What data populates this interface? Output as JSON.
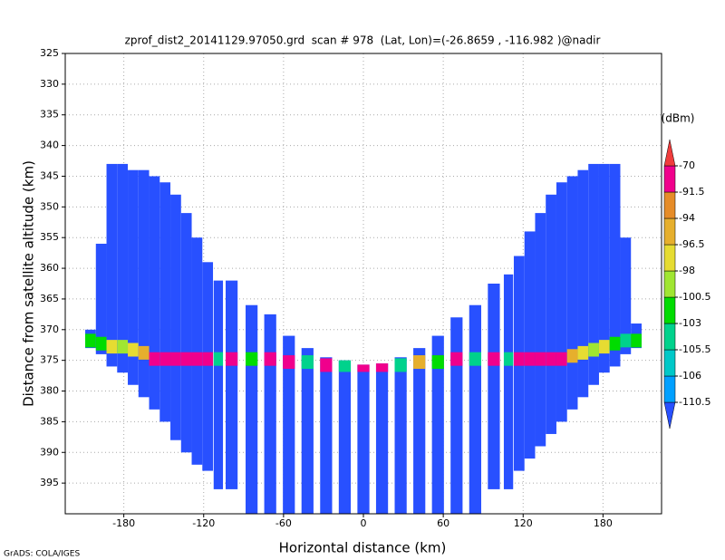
{
  "chart_data": {
    "type": "strip-profile",
    "title": "zprof_dist2_20141129.97050.grd  scan # 978  (Lat, Lon)=(-26.8659 , -116.982 )@nadir",
    "xlabel": "Horizontal distance (km)",
    "ylabel": "Distance from satellite altitude (km)",
    "credit": "GrADS: COLA/IGES",
    "colorbar_title": "(dBm)",
    "xlim": [
      -224,
      224
    ],
    "ylim": [
      325,
      400
    ],
    "y_inverted": true,
    "xticks": [
      -180,
      -120,
      -60,
      0,
      60,
      120,
      180
    ],
    "yticks": [
      325,
      330,
      335,
      340,
      345,
      350,
      355,
      360,
      365,
      370,
      375,
      380,
      385,
      390,
      395
    ],
    "grid": true,
    "colorbar": {
      "levels": [
        -110.5,
        -106,
        -105.5,
        -103,
        -100.5,
        -98,
        -96.5,
        -94,
        -91.5,
        -70
      ],
      "colors": [
        "#2850ff",
        "#00a0ff",
        "#00c8c8",
        "#00d28c",
        "#00dc00",
        "#a0e632",
        "#e6dc32",
        "#e6af2d",
        "#e68c28",
        "#f0008c",
        "#f03c3c"
      ]
    },
    "columns": [
      {
        "x": -205,
        "width": 8,
        "top": 370,
        "bottom": 373,
        "surface": 372,
        "peak": -102
      },
      {
        "x": -197,
        "width": 8,
        "top": 356,
        "bottom": 374,
        "surface": 372.5,
        "peak": -101
      },
      {
        "x": -189,
        "width": 8,
        "top": 343,
        "bottom": 376,
        "surface": 373,
        "peak": -97
      },
      {
        "x": -181,
        "width": 8,
        "top": 343,
        "bottom": 377,
        "surface": 373,
        "peak": -99
      },
      {
        "x": -173,
        "width": 8,
        "top": 344,
        "bottom": 379,
        "surface": 373.5,
        "peak": -97
      },
      {
        "x": -165,
        "width": 8,
        "top": 344,
        "bottom": 381,
        "surface": 374,
        "peak": -95
      },
      {
        "x": -157,
        "width": 8,
        "top": 345,
        "bottom": 383,
        "surface": 375,
        "peak": -80
      },
      {
        "x": -149,
        "width": 8,
        "top": 346,
        "bottom": 385,
        "surface": 375,
        "peak": -80
      },
      {
        "x": -141,
        "width": 8,
        "top": 348,
        "bottom": 388,
        "surface": 375,
        "peak": -80
      },
      {
        "x": -133,
        "width": 8,
        "top": 351,
        "bottom": 390,
        "surface": 375,
        "peak": -80
      },
      {
        "x": -125,
        "width": 8,
        "top": 355,
        "bottom": 392,
        "surface": 375,
        "peak": -80
      },
      {
        "x": -117,
        "width": 8,
        "top": 359,
        "bottom": 393,
        "surface": 375,
        "peak": -80
      },
      {
        "x": -109,
        "width": 7,
        "top": 362,
        "bottom": 396,
        "surface": 375,
        "peak": -104
      },
      {
        "x": -99,
        "width": 9,
        "top": 362,
        "bottom": 396,
        "surface": 375,
        "peak": -80
      },
      {
        "x": -84,
        "width": 9,
        "top": 366,
        "bottom": 400,
        "surface": 375,
        "peak": -102
      },
      {
        "x": -70,
        "width": 9,
        "top": 367.5,
        "bottom": 400,
        "surface": 375,
        "peak": -85
      },
      {
        "x": -56,
        "width": 9,
        "top": 371,
        "bottom": 400,
        "surface": 375.5,
        "peak": -80
      },
      {
        "x": -42,
        "width": 9,
        "top": 373,
        "bottom": 400,
        "surface": 375.5,
        "peak": -104
      },
      {
        "x": -28,
        "width": 9,
        "top": 374.5,
        "bottom": 400,
        "surface": 376,
        "peak": -85
      },
      {
        "x": -14,
        "width": 9,
        "top": 375,
        "bottom": 400,
        "surface": 376,
        "peak": -104
      },
      {
        "x": 0,
        "width": 9,
        "top": 375.7,
        "bottom": 400,
        "surface": 376,
        "peak": -85
      },
      {
        "x": 14,
        "width": 9,
        "top": 375.5,
        "bottom": 400,
        "surface": 376,
        "peak": -80
      },
      {
        "x": 28,
        "width": 9,
        "top": 374.5,
        "bottom": 400,
        "surface": 376,
        "peak": -104
      },
      {
        "x": 42,
        "width": 9,
        "top": 373,
        "bottom": 400,
        "surface": 375.5,
        "peak": -95
      },
      {
        "x": 56,
        "width": 9,
        "top": 371,
        "bottom": 400,
        "surface": 375.5,
        "peak": -102
      },
      {
        "x": 70,
        "width": 9,
        "top": 368,
        "bottom": 400,
        "surface": 375,
        "peak": -80
      },
      {
        "x": 84,
        "width": 9,
        "top": 366,
        "bottom": 400,
        "surface": 375,
        "peak": -104
      },
      {
        "x": 98,
        "width": 9,
        "top": 362.5,
        "bottom": 396,
        "surface": 375,
        "peak": -80
      },
      {
        "x": 109,
        "width": 7,
        "top": 361,
        "bottom": 396,
        "surface": 375,
        "peak": -104
      },
      {
        "x": 117,
        "width": 8,
        "top": 358,
        "bottom": 393,
        "surface": 375,
        "peak": -80
      },
      {
        "x": 125,
        "width": 8,
        "top": 354,
        "bottom": 391,
        "surface": 375,
        "peak": -80
      },
      {
        "x": 133,
        "width": 8,
        "top": 351,
        "bottom": 389,
        "surface": 375,
        "peak": -80
      },
      {
        "x": 141,
        "width": 8,
        "top": 348,
        "bottom": 387,
        "surface": 375,
        "peak": -80
      },
      {
        "x": 149,
        "width": 8,
        "top": 346,
        "bottom": 385,
        "surface": 375,
        "peak": -80
      },
      {
        "x": 157,
        "width": 8,
        "top": 345,
        "bottom": 383,
        "surface": 374.5,
        "peak": -95
      },
      {
        "x": 165,
        "width": 8,
        "top": 344,
        "bottom": 381,
        "surface": 374,
        "peak": -97
      },
      {
        "x": 173,
        "width": 8,
        "top": 343,
        "bottom": 379,
        "surface": 373.5,
        "peak": -99
      },
      {
        "x": 181,
        "width": 8,
        "top": 343,
        "bottom": 377,
        "surface": 373,
        "peak": -97
      },
      {
        "x": 189,
        "width": 8,
        "top": 343,
        "bottom": 376,
        "surface": 372.5,
        "peak": -101
      },
      {
        "x": 197,
        "width": 8,
        "top": 355,
        "bottom": 374,
        "surface": 372,
        "peak": -104
      },
      {
        "x": 205,
        "width": 8,
        "top": 369,
        "bottom": 373,
        "surface": 372,
        "peak": -102
      }
    ]
  }
}
